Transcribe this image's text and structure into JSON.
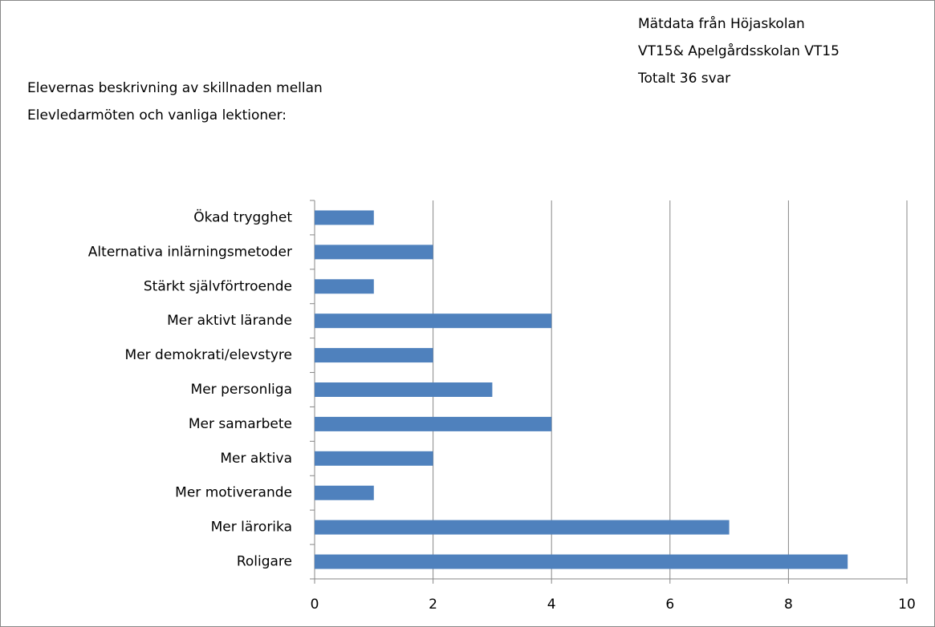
{
  "chart_data": {
    "type": "bar",
    "orientation": "horizontal",
    "title": [
      "Elevernas beskrivning av skillnaden mellan",
      "Elevledarmöten och vanliga lektioner:"
    ],
    "annotation": [
      "Mätdata från Höjaskolan",
      "VT15& Apelgårdsskolan VT15",
      "Totalt 36 svar"
    ],
    "categories": [
      "Ökad trygghet",
      "Alternativa inlärningsmetoder",
      "Stärkt självförtroende",
      "Mer aktivt lärande",
      "Mer demokrati/elevstyre",
      "Mer personliga",
      "Mer samarbete",
      "Mer aktiva",
      "Mer motiverande",
      "Mer lärorika",
      "Roligare"
    ],
    "values": [
      1,
      2,
      1,
      4,
      2,
      3,
      4,
      2,
      1,
      7,
      9
    ],
    "color": "#4f81bd",
    "xlim": [
      0,
      10
    ],
    "xticks": [
      0,
      2,
      4,
      6,
      8,
      10
    ],
    "grid": true
  }
}
